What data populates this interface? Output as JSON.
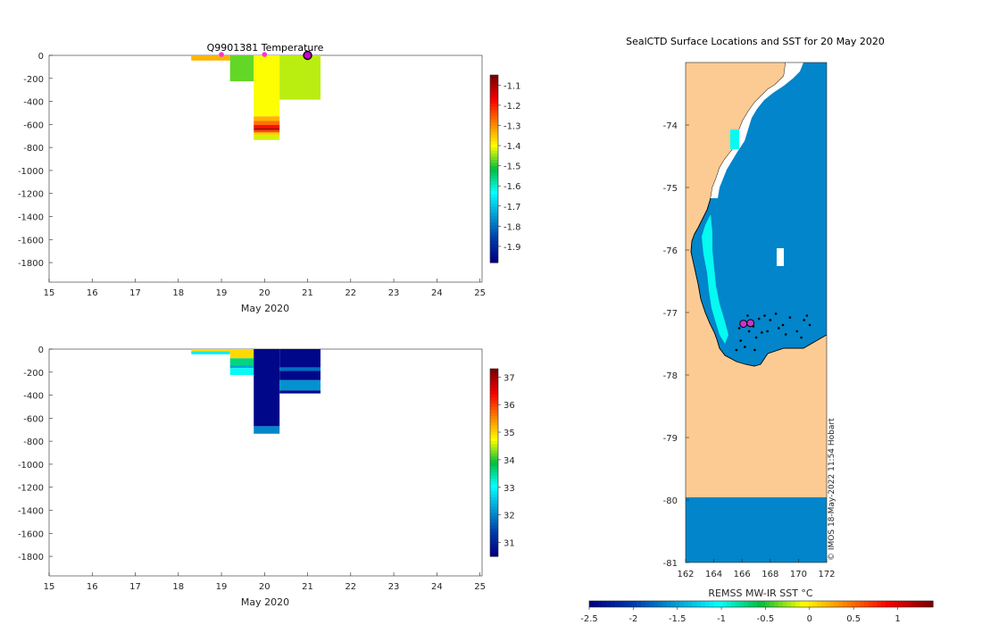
{
  "chart_data": [
    {
      "type": "heatmap",
      "panel": "temperature-profile",
      "title": "Q9901381  Temperature",
      "xlabel": "May 2020",
      "ylabel": "",
      "x_ticks": [
        "15",
        "16",
        "17",
        "18",
        "19",
        "20",
        "21",
        "22",
        "23",
        "24",
        "25"
      ],
      "y_ticks": [
        "0",
        "-200",
        "-400",
        "-600",
        "-800",
        "-1000",
        "-1200",
        "-1400",
        "-1600",
        "-1800"
      ],
      "xlim": [
        15,
        25.05
      ],
      "ylim": [
        -1970,
        0
      ],
      "colorbar": {
        "ticks": [
          "-1.1",
          "-1.2",
          "-1.3",
          "-1.4",
          "-1.5",
          "-1.6",
          "-1.7",
          "-1.8",
          "-1.9"
        ],
        "range": [
          -1.98,
          -1.05
        ]
      },
      "profiles": [
        {
          "x0": 18.3,
          "x1": 19.2,
          "segments": [
            {
              "top": 0,
              "bottom": -45,
              "value": -1.33
            }
          ]
        },
        {
          "x0": 19.2,
          "x1": 19.75,
          "segments": [
            {
              "top": 0,
              "bottom": -225,
              "value": -1.47
            }
          ]
        },
        {
          "x0": 19.75,
          "x1": 20.35,
          "segments": [
            {
              "top": 0,
              "bottom": -530,
              "value": -1.4
            },
            {
              "top": -530,
              "bottom": -570,
              "value": -1.33
            },
            {
              "top": -570,
              "bottom": -605,
              "value": -1.27
            },
            {
              "top": -605,
              "bottom": -630,
              "value": -1.18
            },
            {
              "top": -630,
              "bottom": -650,
              "value": -1.1
            },
            {
              "top": -650,
              "bottom": -670,
              "value": -1.24
            },
            {
              "top": -670,
              "bottom": -690,
              "value": -1.35
            },
            {
              "top": -690,
              "bottom": -735,
              "value": -1.42
            }
          ]
        },
        {
          "x0": 20.35,
          "x1": 21.3,
          "segments": [
            {
              "top": 0,
              "bottom": -385,
              "value": -1.43
            }
          ]
        }
      ],
      "markers": [
        {
          "x": 19.0,
          "y": 0
        },
        {
          "x": 20.0,
          "y": 0
        }
      ],
      "current_marker": {
        "x": 21.0,
        "y": 0
      }
    },
    {
      "type": "heatmap",
      "panel": "salinity-profile",
      "title": "",
      "xlabel": "May 2020",
      "ylabel": "",
      "x_ticks": [
        "15",
        "16",
        "17",
        "18",
        "19",
        "20",
        "21",
        "22",
        "23",
        "24",
        "25"
      ],
      "y_ticks": [
        "0",
        "-200",
        "-400",
        "-600",
        "-800",
        "-1000",
        "-1200",
        "-1400",
        "-1600",
        "-1800"
      ],
      "xlim": [
        15,
        25.05
      ],
      "ylim": [
        -1970,
        0
      ],
      "colorbar": {
        "ticks": [
          "37",
          "36",
          "35",
          "34",
          "33",
          "32",
          "31"
        ],
        "range": [
          30.5,
          37.3
        ]
      },
      "profiles": [
        {
          "x0": 18.3,
          "x1": 19.2,
          "segments": [
            {
              "top": 0,
              "bottom": -20,
              "value": 35.0
            },
            {
              "top": -20,
              "bottom": -45,
              "value": 32.9
            }
          ]
        },
        {
          "x0": 19.2,
          "x1": 19.75,
          "segments": [
            {
              "top": 0,
              "bottom": -80,
              "value": 35.0
            },
            {
              "top": -80,
              "bottom": -140,
              "value": 33.6
            },
            {
              "top": -140,
              "bottom": -165,
              "value": 32.3
            },
            {
              "top": -165,
              "bottom": -225,
              "value": 33.1
            }
          ]
        },
        {
          "x0": 19.75,
          "x1": 20.35,
          "segments": [
            {
              "top": 0,
              "bottom": -670,
              "value": 30.6
            },
            {
              "top": -670,
              "bottom": -735,
              "value": 32.0
            }
          ]
        },
        {
          "x0": 20.35,
          "x1": 21.3,
          "segments": [
            {
              "top": 0,
              "bottom": -160,
              "value": 30.6
            },
            {
              "top": -160,
              "bottom": -190,
              "value": 31.8
            },
            {
              "top": -190,
              "bottom": -270,
              "value": 30.6
            },
            {
              "top": -270,
              "bottom": -360,
              "value": 32.1
            },
            {
              "top": -360,
              "bottom": -385,
              "value": 30.6
            }
          ]
        }
      ]
    },
    {
      "type": "heatmap",
      "panel": "sst-map",
      "title": "SealCTD Surface Locations and SST for 20 May 2020",
      "xlabel": "",
      "ylabel": "",
      "x_ticks": [
        "162",
        "164",
        "166",
        "168",
        "170",
        "172"
      ],
      "y_ticks": [
        "-74",
        "-75",
        "-76",
        "-77",
        "-78",
        "-79",
        "-80",
        "-81"
      ],
      "xlim": [
        162,
        172
      ],
      "ylim": [
        -81,
        -73
      ],
      "colorbar_label": "REMSS MW-IR SST °C",
      "colorbar": {
        "ticks": [
          "-2.5",
          "-2",
          "-1.5",
          "-1",
          "-0.5",
          "0",
          "0.5",
          "1"
        ],
        "range": [
          -2.5,
          1.4
        ]
      },
      "ocean_sst": -1.65,
      "nearshore_sst": -1.0,
      "no_data_band": {
        "lat_top": -80.0,
        "lat_bottom": -81.0,
        "sst": -1.65
      },
      "recent_locations": [
        {
          "lon": 166.1,
          "lat": -77.18
        },
        {
          "lon": 166.6,
          "lat": -77.17
        }
      ],
      "track_points": [
        {
          "lon": 165.9,
          "lat": -77.45
        },
        {
          "lon": 166.2,
          "lat": -77.55
        },
        {
          "lon": 166.5,
          "lat": -77.3
        },
        {
          "lon": 166.8,
          "lat": -77.22
        },
        {
          "lon": 167.2,
          "lat": -77.1
        },
        {
          "lon": 167.6,
          "lat": -77.05
        },
        {
          "lon": 168.0,
          "lat": -77.12
        },
        {
          "lon": 168.4,
          "lat": -77.02
        },
        {
          "lon": 168.9,
          "lat": -77.2
        },
        {
          "lon": 169.4,
          "lat": -77.08
        },
        {
          "lon": 169.9,
          "lat": -77.3
        },
        {
          "lon": 170.4,
          "lat": -77.12
        },
        {
          "lon": 170.8,
          "lat": -77.2
        },
        {
          "lon": 167.0,
          "lat": -77.4
        },
        {
          "lon": 167.4,
          "lat": -77.32
        },
        {
          "lon": 165.6,
          "lat": -77.6
        },
        {
          "lon": 166.9,
          "lat": -77.6
        },
        {
          "lon": 168.6,
          "lat": -77.25
        },
        {
          "lon": 169.1,
          "lat": -77.35
        },
        {
          "lon": 170.2,
          "lat": -77.4
        },
        {
          "lon": 170.6,
          "lat": -77.05
        },
        {
          "lon": 167.8,
          "lat": -77.3
        },
        {
          "lon": 165.8,
          "lat": -77.25
        },
        {
          "lon": 166.4,
          "lat": -77.05
        }
      ]
    }
  ],
  "credit": "© IMOS 18-May-2022 11:54 Hobart"
}
